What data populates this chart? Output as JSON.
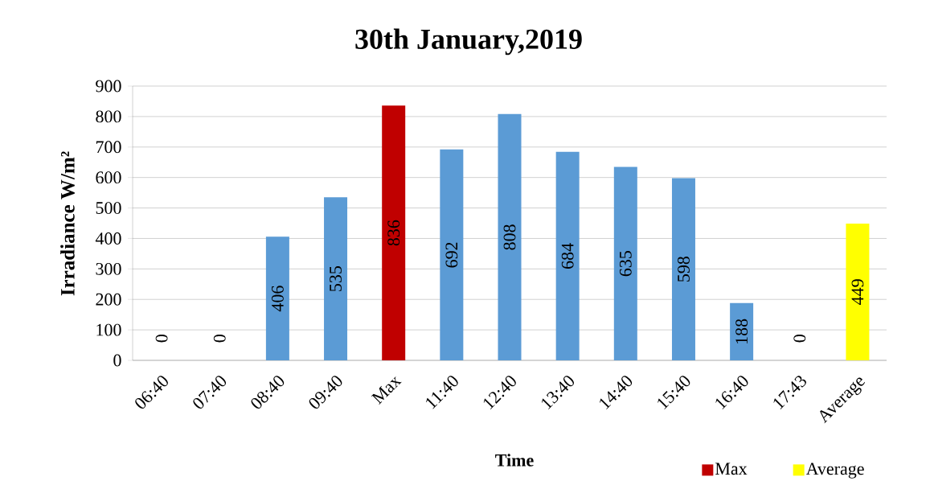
{
  "chart_data": {
    "type": "bar",
    "title": "30th January,2019",
    "xlabel": "Time",
    "ylabel": "Irradiance W/m²",
    "categories": [
      "06:40",
      "07:40",
      "08:40",
      "09:40",
      "Max",
      "11:40",
      "12:40",
      "13:40",
      "14:40",
      "15:40",
      "16:40",
      "17:43",
      "Average"
    ],
    "series": [
      {
        "color": "#5b9bd5",
        "values": [
          0,
          0,
          406,
          535,
          null,
          692,
          808,
          684,
          635,
          598,
          188,
          0,
          null
        ]
      },
      {
        "name": "Max",
        "color": "#c00000",
        "values": [
          null,
          null,
          null,
          null,
          836,
          null,
          null,
          null,
          null,
          null,
          null,
          null,
          null
        ]
      },
      {
        "name": "Average",
        "color": "#ffff00",
        "values": [
          null,
          null,
          null,
          null,
          null,
          null,
          null,
          null,
          null,
          null,
          null,
          null,
          449
        ]
      }
    ],
    "ylim": [
      0,
      900
    ],
    "yticks": [
      0,
      100,
      200,
      300,
      400,
      500,
      600,
      700,
      800,
      900
    ],
    "grid": "y",
    "legend": "bottom",
    "data_labels": true
  }
}
